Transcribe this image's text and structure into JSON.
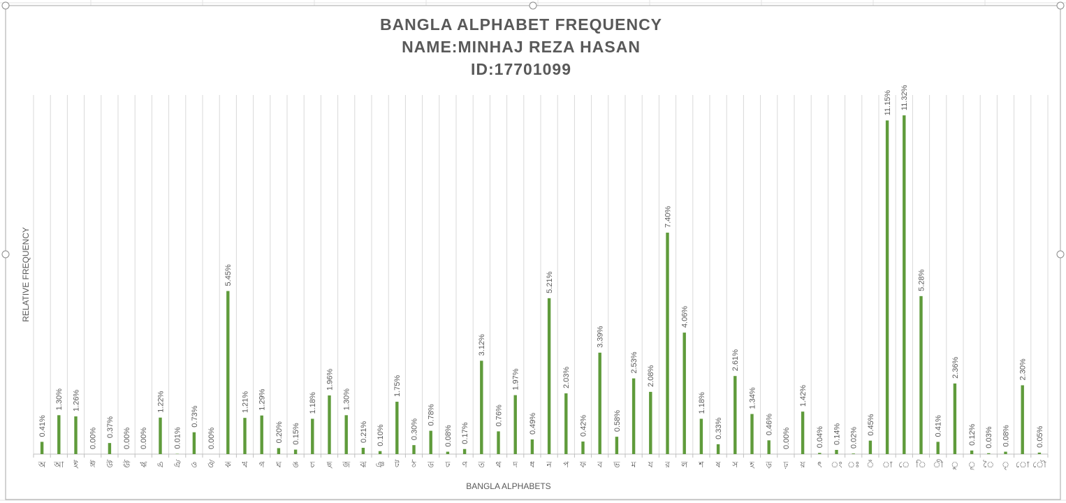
{
  "chart_data": {
    "type": "bar",
    "title": [
      "BANGLA ALPHABET FREQUENCY",
      "NAME:MINHAJ REZA HASAN",
      "ID:17701099"
    ],
    "y_label": "RELATIVE FREQUENCY",
    "x_label": "BANGLA ALPHABETS",
    "categories": [
      "অ",
      "আ",
      "ই",
      "ঈ",
      "উ",
      "ঊ",
      "ঋ",
      "এ",
      "ঐ",
      "ও",
      "ঔ",
      "ক",
      "খ",
      "গ",
      "ঘ",
      "ঙ",
      "চ",
      "ছ",
      "জ",
      "ঝ",
      "ঞ",
      "ট",
      "ঠ",
      "ড",
      "ঢ",
      "ণ",
      "ত",
      "থ",
      "দ",
      "ধ",
      "ন",
      "প",
      "ফ",
      "ব",
      "ভ",
      "ম",
      "য",
      "র",
      "ল",
      "শ",
      "ষ",
      "স",
      "হ",
      "ড়",
      "ঢ়",
      "য়",
      "ৎ",
      "ং",
      "ঃ",
      "ঁ",
      "া",
      "ে",
      "ি",
      "ী",
      "ু",
      "ূ",
      "ৈ",
      "ৃ",
      "ো",
      "ৌ"
    ],
    "values": [
      0.41,
      1.3,
      1.26,
      0.0,
      0.37,
      0.0,
      0.0,
      1.22,
      0.01,
      0.73,
      0.0,
      5.45,
      1.21,
      1.29,
      0.2,
      0.15,
      1.18,
      1.96,
      1.3,
      0.21,
      0.1,
      1.75,
      0.3,
      0.78,
      0.08,
      0.17,
      3.12,
      0.76,
      1.97,
      0.49,
      5.21,
      2.03,
      0.42,
      3.39,
      0.58,
      2.53,
      2.08,
      7.4,
      4.06,
      1.18,
      0.33,
      2.61,
      1.34,
      0.46,
      0.0,
      1.42,
      0.04,
      0.14,
      0.02,
      0.45,
      11.15,
      11.32,
      5.28,
      0.41,
      2.36,
      0.12,
      0.03,
      0.08,
      2.3,
      0.05
    ],
    "value_labels": [
      "0.41%",
      "1.30%",
      "1.26%",
      "0.00%",
      "0.37%",
      "0.00%",
      "0.00%",
      "1.22%",
      "0.01%",
      "0.73%",
      "0.00%",
      "5.45%",
      "1.21%",
      "1.29%",
      "0.20%",
      "0.15%",
      "1.18%",
      "1.96%",
      "1.30%",
      "0.21%",
      "0.10%",
      "1.75%",
      "0.30%",
      "0.78%",
      "0.08%",
      "0.17%",
      "3.12%",
      "0.76%",
      "1.97%",
      "0.49%",
      "5.21%",
      "2.03%",
      "0.42%",
      "3.39%",
      "0.58%",
      "2.53%",
      "2.08%",
      "7.40%",
      "4.06%",
      "1.18%",
      "0.33%",
      "2.61%",
      "1.34%",
      "0.46%",
      "0.00%",
      "1.42%",
      "0.04%",
      "0.14%",
      "0.02%",
      "0.45%",
      "11.15%",
      "11.32%",
      "5.28%",
      "0.41%",
      "2.36%",
      "0.12%",
      "0.03%",
      "0.08%",
      "2.30%",
      "0.05%"
    ],
    "color": "#5f9b3b",
    "ylim": [
      0,
      12
    ]
  }
}
